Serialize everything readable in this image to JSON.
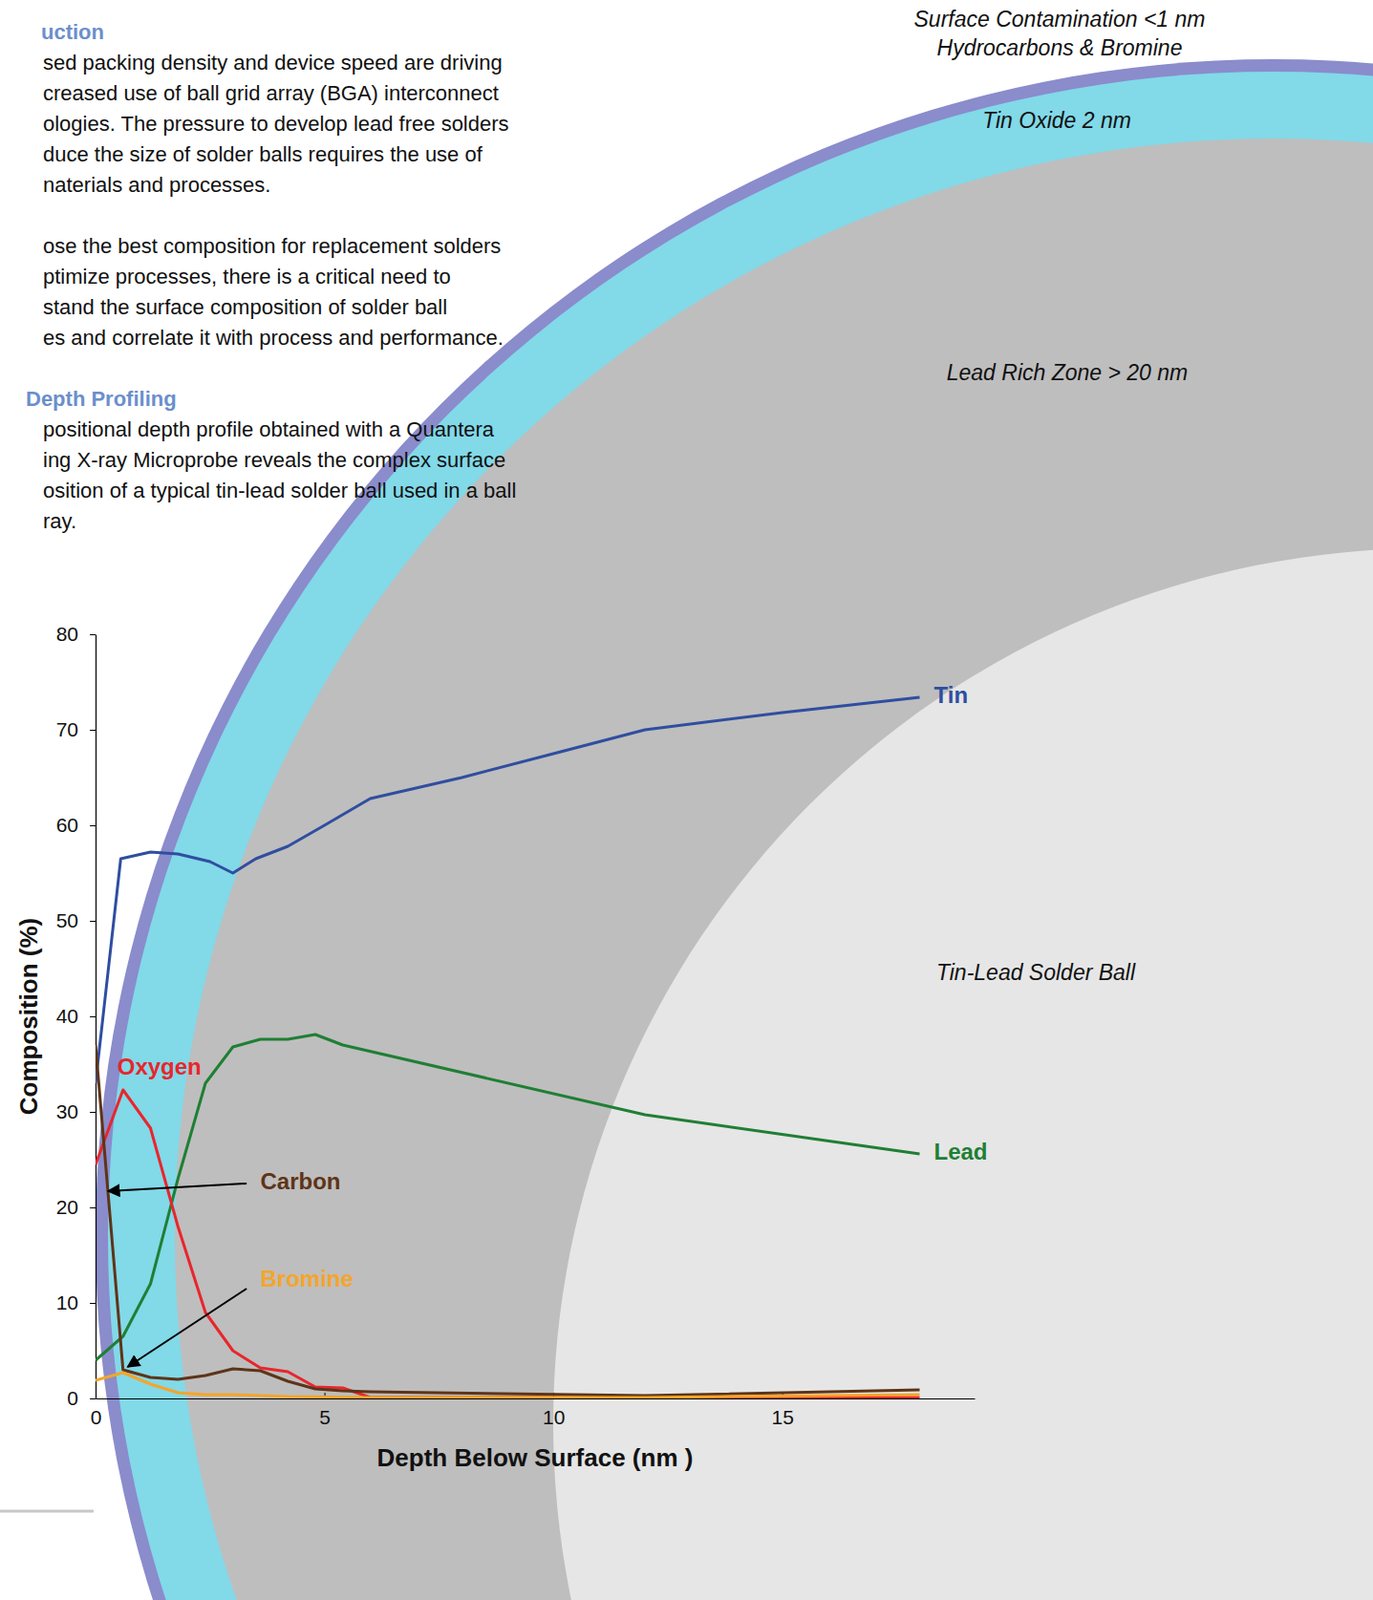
{
  "chart_data": {
    "type": "line",
    "xlabel": "Depth Below Surface (nm )",
    "ylabel": "Composition (%)",
    "xlim": [
      0,
      19.2
    ],
    "xticks": [
      0,
      5,
      10,
      15
    ],
    "ylim": [
      0,
      80
    ],
    "yticks": [
      0,
      10,
      20,
      30,
      40,
      50,
      60,
      70,
      80
    ],
    "grid": false,
    "series": [
      {
        "name": "Tin",
        "color": "#2f4ea0",
        "x": [
          0,
          0.55,
          1.2,
          1.8,
          2.5,
          3,
          3.5,
          4.2,
          5,
          6,
          8,
          10,
          12,
          15,
          18
        ],
        "values": [
          33,
          56.5,
          57.2,
          57,
          56.2,
          55,
          56.5,
          57.8,
          60,
          62.8,
          65,
          67.5,
          70,
          71.8,
          73.4
        ]
      },
      {
        "name": "Lead",
        "color": "#1f7f34",
        "x": [
          0,
          0.6,
          1.2,
          1.8,
          2.4,
          3,
          3.6,
          4.2,
          4.8,
          5.4,
          12,
          18
        ],
        "values": [
          4,
          6.5,
          12,
          23,
          33,
          36.8,
          37.6,
          37.6,
          38.1,
          37,
          29.7,
          25.6
        ]
      },
      {
        "name": "Oxygen",
        "color": "#e8262c",
        "x": [
          0,
          0.6,
          1.2,
          1.8,
          2.4,
          3,
          3.6,
          4.2,
          4.8,
          5.4,
          6,
          10,
          18
        ],
        "values": [
          24.5,
          32.3,
          28.3,
          18,
          9,
          5,
          3.2,
          2.8,
          1.2,
          1.1,
          0.1,
          0.1,
          0.1
        ]
      },
      {
        "name": "Carbon",
        "color": "#5e3418",
        "x": [
          0,
          0.6,
          1.2,
          1.8,
          2.4,
          3,
          3.6,
          4.2,
          4.8,
          5.4,
          6,
          12,
          18
        ],
        "values": [
          37,
          3,
          2.2,
          2,
          2.4,
          3.1,
          2.9,
          1.8,
          1,
          0.8,
          0.7,
          0.3,
          0.9
        ]
      },
      {
        "name": "Bromine",
        "color": "#f5a52a",
        "x": [
          0,
          0.6,
          1.2,
          1.8,
          2.4,
          3,
          3.6,
          4.2,
          6,
          12,
          18
        ],
        "values": [
          1.9,
          2.7,
          1.5,
          0.6,
          0.4,
          0.4,
          0.3,
          0.2,
          0.1,
          0.1,
          0.4
        ]
      }
    ]
  },
  "page_text": {
    "sections": [
      {
        "heading": "uction",
        "paragraphs": [
          [
            "sed packing density and device speed are driving",
            "creased use of ball grid array (BGA) interconnect",
            "ologies. The pressure to develop lead free solders",
            "duce the size of solder balls requires the use of",
            "naterials and processes."
          ],
          [
            "ose the best composition for replacement solders",
            "ptimize processes, there is a critical need to",
            "stand the surface composition of solder ball",
            "es and correlate it with process and performance."
          ]
        ]
      },
      {
        "heading": "Depth Profiling",
        "paragraphs": [
          [
            "positional depth profile obtained with a Quantera",
            "ing X-ray Microprobe reveals the complex surface",
            "osition of a typical tin-lead solder ball used in a ball",
            "ray."
          ]
        ]
      }
    ]
  },
  "diagram": {
    "labels": [
      {
        "lines": [
          "Surface Contamination <1 nm",
          "Hydrocarbons & Bromine"
        ]
      },
      {
        "lines": [
          "Tin Oxide 2 nm"
        ]
      },
      {
        "lines": [
          "Lead Rich Zone > 20 nm"
        ]
      },
      {
        "lines": [
          "Tin-Lead Solder Ball"
        ]
      }
    ]
  }
}
